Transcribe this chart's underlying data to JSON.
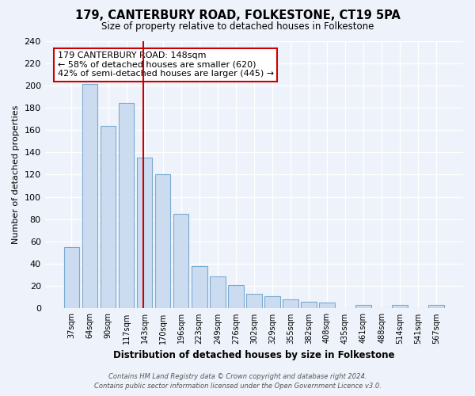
{
  "title": "179, CANTERBURY ROAD, FOLKESTONE, CT19 5PA",
  "subtitle": "Size of property relative to detached houses in Folkestone",
  "xlabel": "Distribution of detached houses by size in Folkestone",
  "ylabel": "Number of detached properties",
  "bar_labels": [
    "37sqm",
    "64sqm",
    "90sqm",
    "117sqm",
    "143sqm",
    "170sqm",
    "196sqm",
    "223sqm",
    "249sqm",
    "276sqm",
    "302sqm",
    "329sqm",
    "355sqm",
    "382sqm",
    "408sqm",
    "435sqm",
    "461sqm",
    "488sqm",
    "514sqm",
    "541sqm",
    "567sqm"
  ],
  "bar_values": [
    55,
    201,
    164,
    184,
    135,
    120,
    85,
    38,
    29,
    21,
    13,
    11,
    8,
    6,
    5,
    0,
    3,
    0,
    3,
    0,
    3
  ],
  "bar_color": "#ccdcf0",
  "bar_edge_color": "#7aaad0",
  "annotation_title": "179 CANTERBURY ROAD: 148sqm",
  "annotation_line1": "← 58% of detached houses are smaller (620)",
  "annotation_line2": "42% of semi-detached houses are larger (445) →",
  "red_line_x": 4.0,
  "ylim": [
    0,
    240
  ],
  "yticks": [
    0,
    20,
    40,
    60,
    80,
    100,
    120,
    140,
    160,
    180,
    200,
    220,
    240
  ],
  "footer1": "Contains HM Land Registry data © Crown copyright and database right 2024.",
  "footer2": "Contains public sector information licensed under the Open Government Licence v3.0.",
  "bg_color": "#eef2fa",
  "grid_color": "#ffffff"
}
